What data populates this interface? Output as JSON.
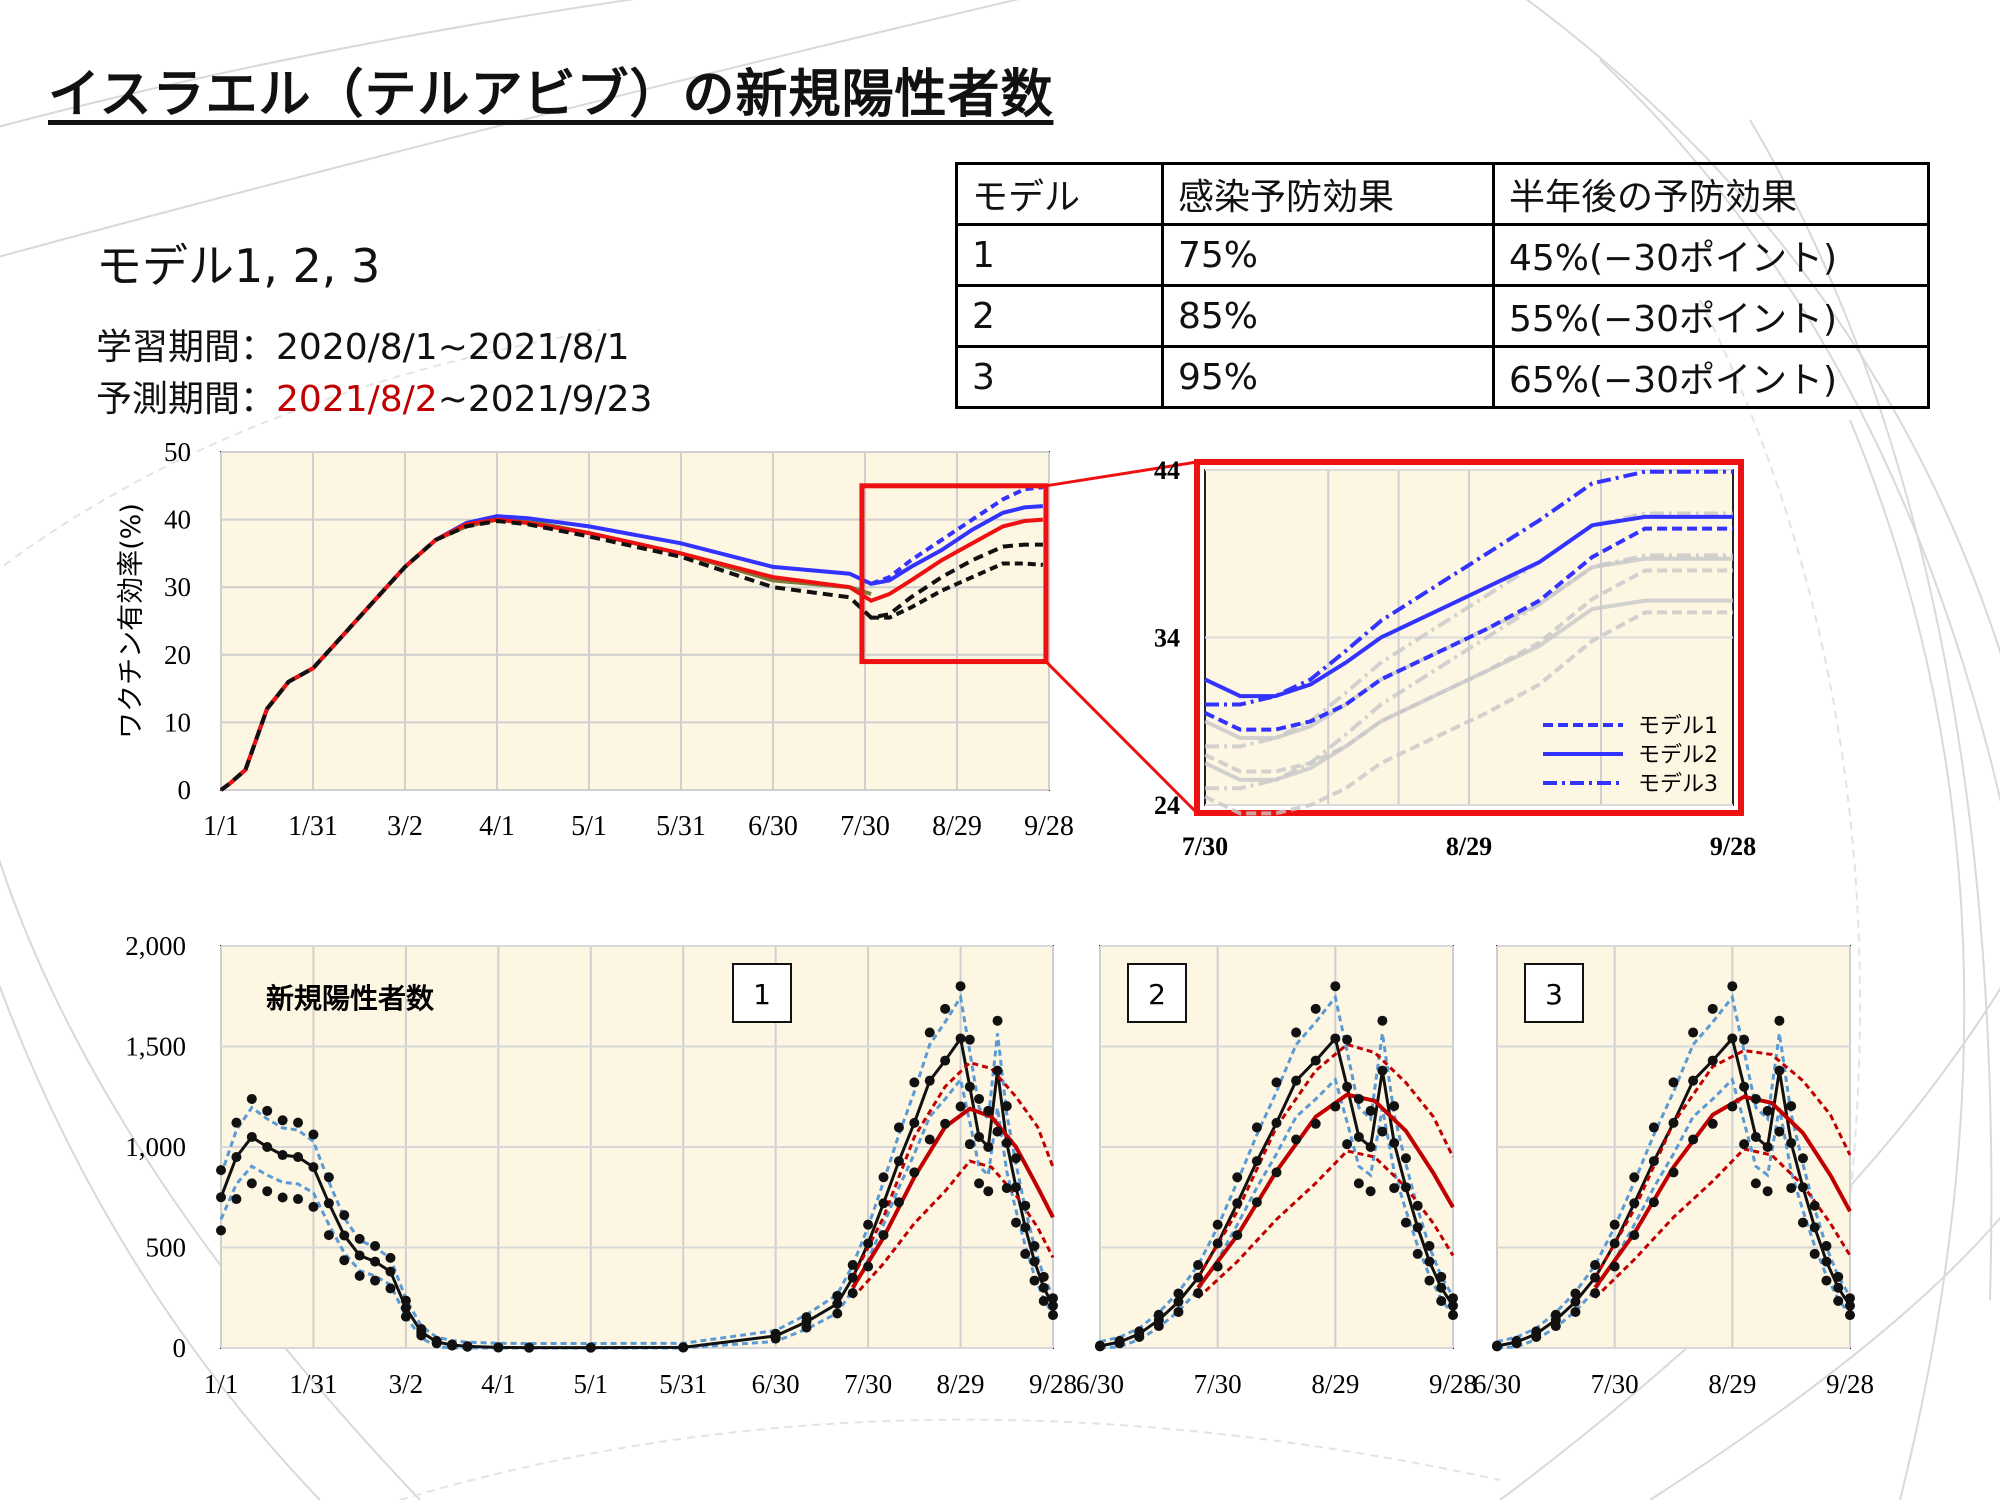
{
  "title": "イスラエル（テルアビブ）の新規陽性者数",
  "subtitle": "モデル1, 2, 3",
  "training_period": {
    "label": "学習期間：",
    "value": "2020/8/1~2021/8/1"
  },
  "forecast_period": {
    "label": "予測期間：",
    "red_value": "2021/8/2",
    "rest_value": "~2021/9/23"
  },
  "table": {
    "headers": [
      "モデル",
      "感染予防効果",
      "半年後の予防効果"
    ],
    "rows": [
      [
        "1",
        "75%",
        "45%(−30ポイント)"
      ],
      [
        "2",
        "85%",
        "55%(−30ポイント)"
      ],
      [
        "3",
        "95%",
        "65%(−30ポイント)"
      ]
    ]
  },
  "colors": {
    "model1": "#3333ff",
    "model2": "#ee1111",
    "model3": "#111111",
    "highlight": "#ee1111",
    "plot_bg": "#fdf6e3",
    "observed_band": "#5b9bd5",
    "forecast": "#c00000"
  },
  "chart_data": [
    {
      "id": "efficacy",
      "type": "line",
      "ylabel": "ワクチン有効率(%)",
      "ylim": [
        0,
        50
      ],
      "yticks": [
        "0",
        "10",
        "20",
        "30",
        "40",
        "50"
      ],
      "x_tick_labels": [
        "1/1",
        "1/31",
        "3/2",
        "4/1",
        "5/1",
        "5/31",
        "6/30",
        "7/30",
        "8/29",
        "9/28"
      ],
      "x_days": [
        0,
        30,
        60,
        90,
        120,
        150,
        180,
        210,
        240,
        270
      ],
      "grid": true,
      "common": {
        "x": [
          0,
          3,
          8,
          15,
          22,
          30,
          40,
          50,
          60,
          70,
          80,
          90,
          100,
          120,
          150,
          180,
          205,
          212
        ],
        "y": [
          0,
          1,
          3,
          12,
          16,
          18,
          23,
          28,
          33,
          37,
          39,
          40,
          39.8,
          38,
          35,
          31,
          30,
          29
        ]
      },
      "series": [
        {
          "name": "モデル1",
          "color": "#3333ff",
          "lines": [
            {
              "dash": "none",
              "x": [
                0,
                3,
                8,
                15,
                22,
                30,
                40,
                50,
                60,
                70,
                80,
                90,
                100,
                120,
                150,
                180,
                205,
                212,
                218,
                225,
                235,
                245,
                255,
                262,
                268
              ],
              "y": [
                0,
                1,
                3,
                12,
                16,
                18,
                23,
                28,
                33,
                37,
                39.5,
                40.5,
                40.2,
                39,
                36.5,
                33,
                32,
                30.5,
                31,
                33,
                35.5,
                38.5,
                41,
                41.8,
                42
              ]
            },
            {
              "dash": "8,5",
              "x": [
                212,
                218,
                225,
                235,
                245,
                255,
                262,
                268
              ],
              "y": [
                30.5,
                31.5,
                34,
                37,
                40,
                43,
                44.5,
                44.8
              ]
            }
          ]
        },
        {
          "name": "モデル2",
          "color": "#ee1111",
          "lines": [
            {
              "dash": "none",
              "x": [
                0,
                3,
                8,
                15,
                22,
                30,
                40,
                50,
                60,
                70,
                80,
                90,
                100,
                120,
                150,
                180,
                205,
                212,
                218,
                225,
                235,
                245,
                255,
                262,
                268
              ],
              "y": [
                0,
                1,
                3,
                12,
                16,
                18,
                23,
                28,
                33,
                37,
                39.3,
                40,
                39.5,
                38,
                35,
                31.5,
                30,
                28,
                29,
                31,
                34,
                36.5,
                39,
                39.8,
                40
              ]
            }
          ]
        },
        {
          "name": "モデル3",
          "color": "#111111",
          "lines": [
            {
              "dash": "10,6",
              "x": [
                0,
                3,
                8,
                15,
                22,
                30,
                40,
                50,
                60,
                70,
                80,
                90,
                100,
                120,
                150,
                180,
                205,
                212,
                218,
                225,
                235,
                245,
                255,
                262,
                268
              ],
              "y": [
                0,
                1,
                3,
                12,
                16,
                18,
                23,
                28,
                33,
                37,
                39,
                39.8,
                39.3,
                37.5,
                34.5,
                30,
                28.5,
                25.5,
                26,
                28.5,
                31.5,
                34,
                36,
                36.3,
                36.3
              ]
            },
            {
              "dash": "8,5",
              "x": [
                212,
                218,
                225,
                235,
                245,
                255,
                262,
                268
              ],
              "y": [
                25.5,
                25.5,
                27,
                29.5,
                31.5,
                33.5,
                33.5,
                33.3
              ]
            }
          ]
        }
      ],
      "highlight_box": {
        "x": [
          209,
          269
        ],
        "y": [
          19,
          45
        ]
      }
    },
    {
      "id": "efficacy_zoom",
      "type": "line",
      "ylim": [
        24,
        44
      ],
      "yticks": [
        "24",
        "34",
        "44"
      ],
      "x_tick_labels": [
        "7/30",
        "8/29",
        "9/28"
      ],
      "x_days": [
        210,
        240,
        270
      ],
      "legend": [
        "モデル1",
        "モデル2",
        "モデル3"
      ],
      "legend_position": "bottom-right",
      "series": [
        {
          "name": "モデル1",
          "dash": "10,5",
          "x": [
            210,
            214,
            218,
            222,
            226,
            230,
            236,
            242,
            248,
            254,
            260,
            266,
            270
          ],
          "y": [
            29.5,
            28.5,
            28.5,
            29,
            30,
            31.5,
            33,
            34.5,
            36.2,
            38.8,
            40.5,
            40.5,
            40.5
          ]
        },
        {
          "name": "モデル2",
          "dash": "none",
          "x": [
            210,
            214,
            218,
            222,
            226,
            230,
            236,
            242,
            248,
            254,
            260,
            266,
            270
          ],
          "y": [
            31.5,
            30.5,
            30.5,
            31.2,
            32.5,
            34,
            35.5,
            37,
            38.5,
            40.7,
            41.2,
            41.2,
            41.2
          ]
        },
        {
          "name": "モデル3",
          "dash": "14,5,3,5",
          "x": [
            210,
            214,
            218,
            222,
            226,
            230,
            236,
            242,
            248,
            254,
            260,
            266,
            270
          ],
          "y": [
            30,
            30,
            30.5,
            31.5,
            33.2,
            35,
            37,
            39,
            41,
            43.2,
            43.9,
            43.9,
            43.9
          ]
        }
      ]
    },
    {
      "id": "cases_full",
      "type": "scatter",
      "title": "新規陽性者数",
      "panel_label": "1",
      "ylim": [
        0,
        2000
      ],
      "yticks": [
        "0",
        "500",
        "1,000",
        "1,500",
        "2,000"
      ],
      "x_tick_labels": [
        "1/1",
        "1/31",
        "3/2",
        "4/1",
        "5/1",
        "5/31",
        "6/30",
        "7/30",
        "8/29",
        "9/28"
      ],
      "x_days": [
        0,
        30,
        60,
        90,
        120,
        150,
        180,
        210,
        240,
        270
      ],
      "observed_x": [
        0,
        5,
        10,
        15,
        20,
        25,
        30,
        35,
        40,
        45,
        50,
        55,
        60,
        65,
        70,
        75,
        80,
        90,
        100,
        120,
        150,
        180,
        190,
        200,
        205,
        210,
        215,
        220,
        225,
        230,
        235,
        240,
        243,
        246,
        249,
        252,
        255,
        258,
        261,
        264,
        267,
        270
      ],
      "observed_y": [
        750,
        950,
        1050,
        1000,
        960,
        950,
        900,
        720,
        560,
        460,
        430,
        380,
        200,
        80,
        30,
        15,
        8,
        3,
        2,
        2,
        3,
        60,
        130,
        220,
        350,
        520,
        720,
        930,
        1120,
        1330,
        1430,
        1540,
        1300,
        1050,
        1000,
        1380,
        1020,
        800,
        600,
        430,
        300,
        210
      ],
      "forecast_mid": {
        "x": [
          205,
          215,
          225,
          235,
          243,
          250,
          258,
          265,
          270
        ],
        "y": [
          300,
          550,
          850,
          1100,
          1190,
          1150,
          1000,
          800,
          650
        ]
      },
      "forecast_upper": {
        "x": [
          205,
          215,
          225,
          235,
          243,
          250,
          258,
          265,
          270
        ],
        "y": [
          350,
          650,
          1050,
          1300,
          1420,
          1390,
          1250,
          1100,
          900
        ]
      },
      "forecast_lower": {
        "x": [
          205,
          215,
          225,
          235,
          243,
          250,
          258,
          265,
          270
        ],
        "y": [
          250,
          420,
          620,
          780,
          930,
          900,
          760,
          600,
          450
        ]
      }
    },
    {
      "id": "cases_model2",
      "type": "scatter",
      "panel_label": "2",
      "ylim": [
        0,
        2000
      ],
      "x_tick_labels": [
        "6/30",
        "7/30",
        "8/29",
        "9/28"
      ],
      "x_days": [
        180,
        210,
        240,
        270
      ],
      "observed_x": [
        180,
        185,
        190,
        195,
        200,
        205,
        210,
        215,
        220,
        225,
        230,
        235,
        240,
        243,
        246,
        249,
        252,
        255,
        258,
        261,
        264,
        267,
        270
      ],
      "observed_y": [
        10,
        30,
        70,
        140,
        230,
        350,
        520,
        720,
        930,
        1120,
        1330,
        1430,
        1540,
        1300,
        1050,
        1000,
        1380,
        1020,
        800,
        600,
        430,
        300,
        210
      ],
      "forecast_mid": {
        "x": [
          205,
          215,
          225,
          235,
          243,
          250,
          258,
          265,
          270
        ],
        "y": [
          300,
          560,
          880,
          1150,
          1260,
          1230,
          1080,
          870,
          700
        ]
      },
      "forecast_upper": {
        "x": [
          205,
          215,
          225,
          235,
          243,
          250,
          258,
          265,
          270
        ],
        "y": [
          350,
          680,
          1100,
          1380,
          1510,
          1470,
          1320,
          1150,
          950
        ]
      },
      "forecast_lower": {
        "x": [
          205,
          215,
          225,
          235,
          243,
          250,
          258,
          265,
          270
        ],
        "y": [
          250,
          430,
          640,
          820,
          980,
          950,
          800,
          620,
          460
        ]
      }
    },
    {
      "id": "cases_model3",
      "type": "scatter",
      "panel_label": "3",
      "ylim": [
        0,
        2000
      ],
      "x_tick_labels": [
        "6/30",
        "7/30",
        "8/29",
        "9/28"
      ],
      "x_days": [
        180,
        210,
        240,
        270
      ],
      "observed_x": [
        180,
        185,
        190,
        195,
        200,
        205,
        210,
        215,
        220,
        225,
        230,
        235,
        240,
        243,
        246,
        249,
        252,
        255,
        258,
        261,
        264,
        267,
        270
      ],
      "observed_y": [
        10,
        30,
        70,
        140,
        230,
        350,
        520,
        720,
        930,
        1120,
        1330,
        1430,
        1540,
        1300,
        1050,
        1000,
        1380,
        1020,
        800,
        600,
        430,
        300,
        210
      ],
      "forecast_mid": {
        "x": [
          205,
          215,
          225,
          235,
          243,
          250,
          258,
          265,
          270
        ],
        "y": [
          300,
          570,
          900,
          1160,
          1250,
          1220,
          1070,
          860,
          680
        ]
      },
      "forecast_upper": {
        "x": [
          205,
          215,
          225,
          235,
          243,
          250,
          258,
          265,
          270
        ],
        "y": [
          350,
          690,
          1120,
          1400,
          1480,
          1460,
          1330,
          1160,
          960
        ]
      },
      "forecast_lower": {
        "x": [
          205,
          215,
          225,
          235,
          243,
          250,
          258,
          265,
          270
        ],
        "y": [
          250,
          440,
          650,
          830,
          990,
          960,
          810,
          620,
          460
        ]
      }
    }
  ]
}
